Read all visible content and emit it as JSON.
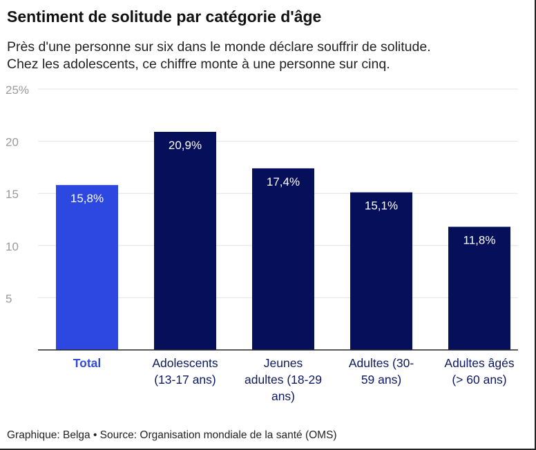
{
  "title": "Sentiment de solitude par catégorie d'âge",
  "subtitle_line1": "Près d'une personne sur six dans le monde déclare souffrir de solitude.",
  "subtitle_line2": "Chez les adolescents, ce chiffre monte à une personne sur cinq.",
  "footer": "Graphique: Belga • Source: Organisation mondiale de la santé (OMS)",
  "colors": {
    "highlight": "#2d48e0",
    "bar": "#06105a",
    "grid": "#e4e4e4",
    "axis": "#222222",
    "tick": "#9a9a9a"
  },
  "chart_data": {
    "type": "bar",
    "title": "Sentiment de solitude par catégorie d'âge",
    "categories": [
      "Total",
      "Adolescents (13-17 ans)",
      "Jeunes adultes (18-29 ans)",
      "Adultes (30-59 ans)",
      "Adultes âgés (> 60 ans)"
    ],
    "category_lines": [
      [
        "Total"
      ],
      [
        "Adolescents",
        "(13-17 ans)"
      ],
      [
        "Jeunes",
        "adultes (18-29",
        "ans)"
      ],
      [
        "Adultes (30-",
        "59 ans)"
      ],
      [
        "Adultes âgés",
        "(> 60 ans)"
      ]
    ],
    "values": [
      15.8,
      20.9,
      17.4,
      15.1,
      11.8
    ],
    "value_labels": [
      "15,8%",
      "20,9%",
      "17,4%",
      "15,1%",
      "11,8%"
    ],
    "highlight_index": 0,
    "ylim": [
      0,
      25
    ],
    "yticks": [
      5,
      10,
      15,
      20,
      25
    ],
    "ytick_labels": [
      "5",
      "10",
      "15",
      "20",
      "25%"
    ],
    "xlabel": "",
    "ylabel": "",
    "grid": true
  }
}
